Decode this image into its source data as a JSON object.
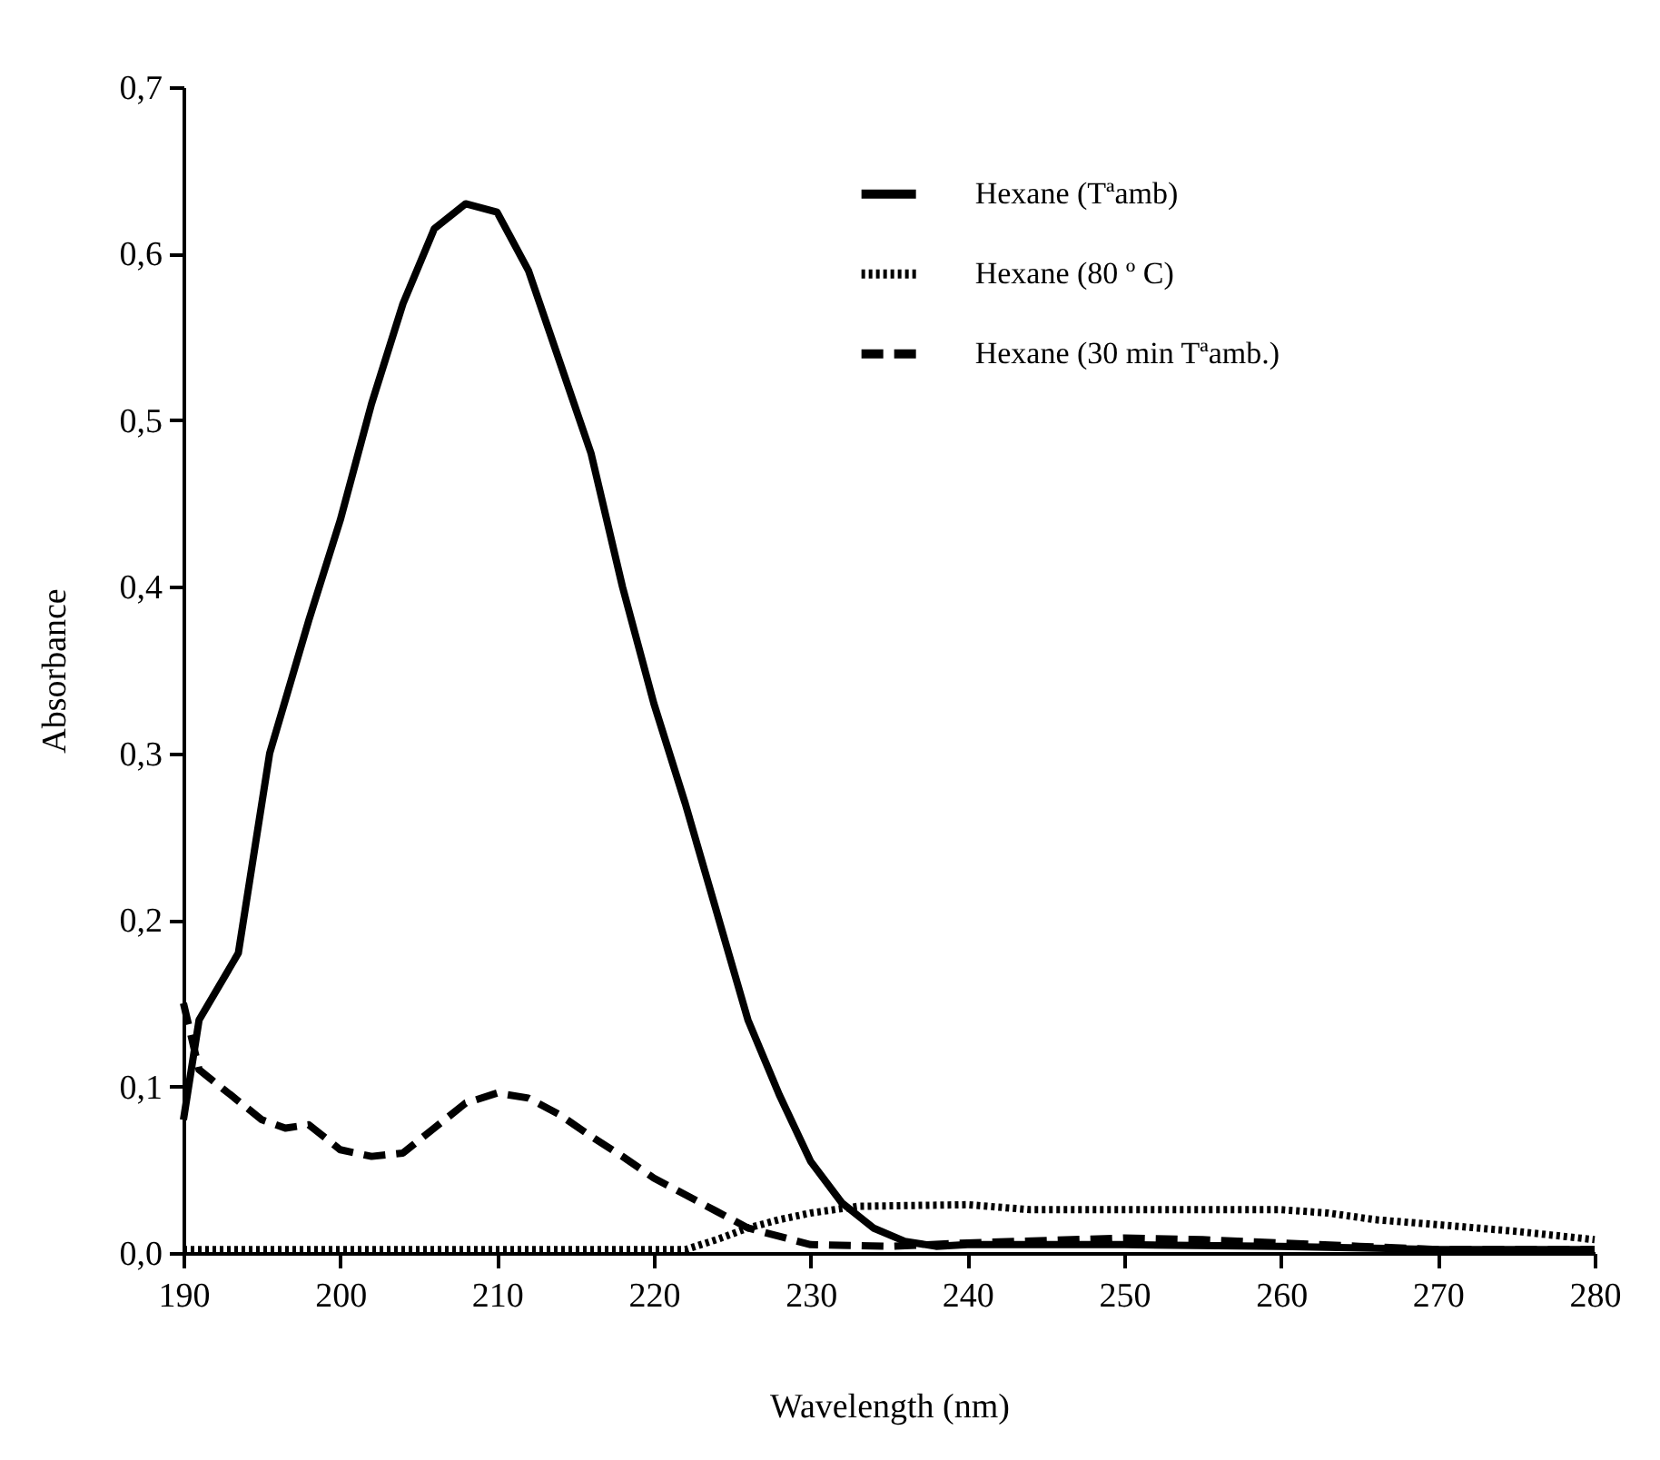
{
  "chart_data": {
    "type": "line",
    "xlabel": "Wavelength (nm)",
    "ylabel": "Absorbance",
    "xlim": [
      190,
      280
    ],
    "xticks": [
      190,
      200,
      210,
      220,
      230,
      240,
      250,
      260,
      270,
      280
    ],
    "ylim": [
      0,
      0.7
    ],
    "yticks": [
      {
        "value": 0,
        "label": "0,0"
      },
      {
        "value": 0.1,
        "label": "0,1"
      },
      {
        "value": 0.2,
        "label": "0,2"
      },
      {
        "value": 0.3,
        "label": "0,3"
      },
      {
        "value": 0.4,
        "label": "0,4"
      },
      {
        "value": 0.5,
        "label": "0,5"
      },
      {
        "value": 0.6,
        "label": "0,6"
      },
      {
        "value": 0.7,
        "label": "0,7"
      }
    ],
    "grid": false,
    "legend": "top right",
    "marker": "none",
    "series": [
      {
        "name": "Hexane (Tªamb)",
        "color": "#000000",
        "line_style": "solid",
        "x": [
          190,
          191,
          193.5,
          195.5,
          198,
          200,
          202,
          204,
          206,
          208,
          210,
          212,
          214,
          216,
          218,
          220,
          222,
          224,
          226,
          228,
          230,
          232,
          234,
          236,
          238,
          240,
          250,
          260,
          270,
          280
        ],
        "values": [
          0.08,
          0.14,
          0.18,
          0.3,
          0.38,
          0.44,
          0.51,
          0.57,
          0.615,
          0.63,
          0.625,
          0.59,
          0.535,
          0.48,
          0.4,
          0.33,
          0.27,
          0.205,
          0.14,
          0.095,
          0.055,
          0.03,
          0.015,
          0.007,
          0.004,
          0.005,
          0.005,
          0.004,
          0.002,
          0.002
        ]
      },
      {
        "name": "Hexane (80 º C)",
        "color": "#000000",
        "line_style": "dotted",
        "x": [
          190,
          200,
          210,
          222,
          224,
          226,
          228,
          230,
          233,
          240,
          244,
          250,
          260,
          263,
          266,
          270,
          275,
          280
        ],
        "values": [
          0.002,
          0.002,
          0.002,
          0.002,
          0.008,
          0.015,
          0.02,
          0.024,
          0.028,
          0.029,
          0.026,
          0.026,
          0.026,
          0.024,
          0.02,
          0.017,
          0.013,
          0.008
        ]
      },
      {
        "name": "Hexane (30 min Tªamb.)",
        "color": "#000000",
        "line_style": "dashed",
        "x": [
          190,
          191,
          193,
          195,
          196.5,
          198,
          200,
          202,
          204,
          206,
          208,
          210,
          212,
          214,
          216,
          218,
          220,
          222,
          224,
          226,
          228,
          230,
          235,
          240,
          250,
          255,
          260,
          265,
          270,
          280
        ],
        "values": [
          0.15,
          0.11,
          0.095,
          0.08,
          0.075,
          0.077,
          0.062,
          0.058,
          0.06,
          0.075,
          0.09,
          0.096,
          0.093,
          0.083,
          0.07,
          0.058,
          0.045,
          0.035,
          0.025,
          0.015,
          0.01,
          0.005,
          0.004,
          0.006,
          0.009,
          0.008,
          0.006,
          0.004,
          0.002,
          0.002
        ]
      }
    ]
  }
}
